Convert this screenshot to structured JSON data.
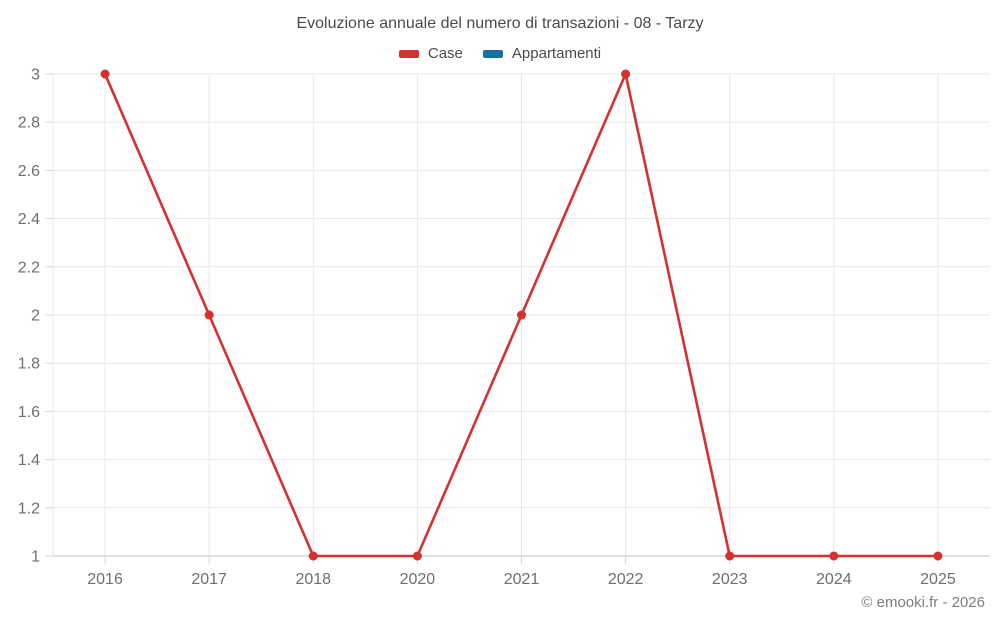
{
  "chart_data": {
    "type": "line",
    "title": "Evoluzione annuale del numero di transazioni - 08 - Tarzy",
    "x_labels": [
      "2016",
      "2017",
      "2018",
      "2020",
      "2021",
      "2022",
      "2023",
      "2024",
      "2025"
    ],
    "series": [
      {
        "name": "Case",
        "color": "#d5312e",
        "values": [
          3,
          2,
          1,
          1,
          2,
          3,
          1,
          1,
          1
        ]
      },
      {
        "name": "Appartamenti",
        "color": "#16719f",
        "values": []
      }
    ],
    "xlabel": "",
    "ylabel": "",
    "ylim": [
      1,
      3
    ],
    "y_ticks": [
      1,
      1.2,
      1.4,
      1.6,
      1.8,
      2,
      2.2,
      2.4,
      2.6,
      2.8,
      3
    ],
    "y_tick_labels": [
      "1",
      "1.2",
      "1.4",
      "1.6",
      "1.8",
      "2",
      "2.2",
      "2.4",
      "2.6",
      "2.8",
      "3"
    ],
    "grid": true,
    "legend_position": "top",
    "colors": {
      "gridline": "#e7e7e7",
      "axis_line": "#d6d6d6",
      "tick": "#d9d9d9"
    }
  },
  "footer": {
    "text": "© emooki.fr - 2026"
  }
}
